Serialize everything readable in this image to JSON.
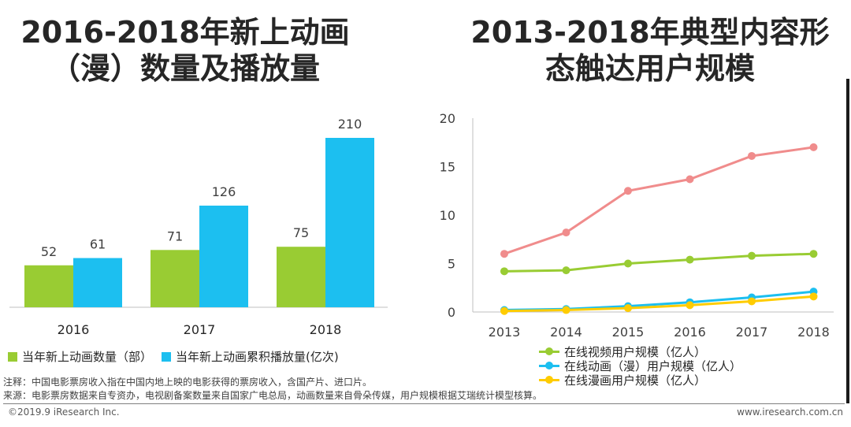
{
  "title_left": "2016-2018年新上动画（漫）数量及播放量",
  "title_left_line1": "2016-2018年新上动画",
  "title_left_line2": "（漫）数量及播放量",
  "title_right_line1": "2013-2018年典型内容形",
  "title_right_line2": "态触达用户规模",
  "colors": {
    "green": "#99cc33",
    "blue": "#1cbff0",
    "pink": "#f08c8c",
    "yellow": "#ffcc00"
  },
  "chart_data": [
    {
      "type": "bar",
      "categories": [
        "2016",
        "2017",
        "2018"
      ],
      "series": [
        {
          "name": "当年新上动画数量（部）",
          "values": [
            52,
            71,
            75
          ]
        },
        {
          "name": "当年新上动画累积播放量(亿次)",
          "values": [
            61,
            126,
            210
          ]
        }
      ],
      "legend_position": "bottom"
    },
    {
      "type": "line",
      "x": [
        "2013",
        "2014",
        "2015",
        "2016",
        "2017",
        "2018"
      ],
      "series": [
        {
          "name": "",
          "values": [
            6.0,
            8.2,
            12.5,
            13.7,
            16.1,
            17.0
          ]
        },
        {
          "name": "在线视频用户规模（亿人）",
          "values": [
            4.2,
            4.3,
            5.0,
            5.4,
            5.8,
            6.0
          ]
        },
        {
          "name": "在线动画（漫）用户规模（亿人）",
          "values": [
            0.2,
            0.3,
            0.6,
            1.0,
            1.5,
            2.1
          ]
        },
        {
          "name": "在线漫画用户规模（亿人）",
          "values": [
            0.1,
            0.2,
            0.4,
            0.7,
            1.1,
            1.6
          ]
        }
      ],
      "ylim": [
        0,
        20
      ],
      "yticks": [
        "0",
        "5",
        "10",
        "15",
        "20"
      ],
      "legend_position": "bottom"
    }
  ],
  "legend_left": [
    "当年新上动画数量（部）",
    "当年新上动画累积播放量(亿次)"
  ],
  "legend_right": [
    "在线视频用户规模（亿人）",
    "在线动画（漫）用户规模（亿人）",
    "在线漫画用户规模（亿人）"
  ],
  "notes": {
    "note1": "注释：中国电影票房收入指在中国内地上映的电影获得的票房收入，含国产片、进口片。",
    "note2": "来源：电影票房数据来自专资办，电视剧备案数量来自国家广电总局，动画数量来自骨朵传媒，用户规模根据艾瑞统计模型核算。"
  },
  "footer": {
    "copyright": "©2019.9 iResearch Inc.",
    "website": "www.iresearch.com.cn"
  }
}
